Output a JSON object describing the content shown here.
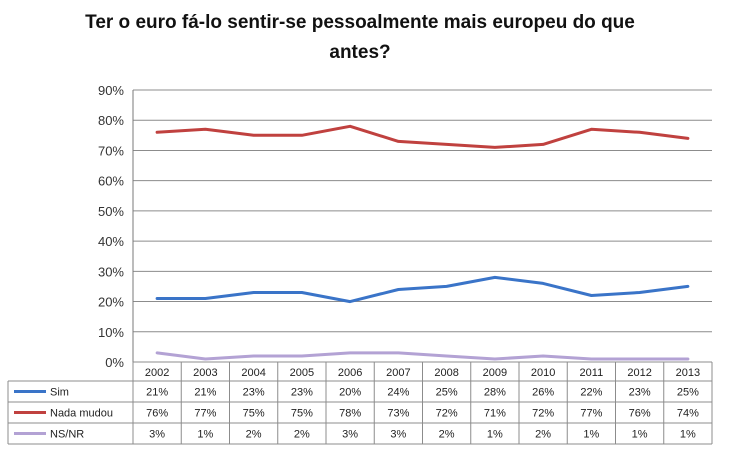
{
  "chart_data": {
    "type": "line",
    "title_line1": "Ter o euro fá-lo sentir-se pessoalmente mais europeu do que",
    "title_line2": "antes?",
    "categories": [
      "2002",
      "2003",
      "2004",
      "2005",
      "2006",
      "2007",
      "2008",
      "2009",
      "2010",
      "2011",
      "2012",
      "2013"
    ],
    "yticks": [
      "0%",
      "10%",
      "20%",
      "30%",
      "40%",
      "50%",
      "60%",
      "70%",
      "80%",
      "90%"
    ],
    "ylim": [
      0,
      90
    ],
    "grid": true,
    "series": [
      {
        "name": "Sim",
        "color": "#3a74c8",
        "values": [
          21,
          21,
          23,
          23,
          20,
          24,
          25,
          28,
          26,
          22,
          23,
          25
        ],
        "labels": [
          "21%",
          "21%",
          "23%",
          "23%",
          "20%",
          "24%",
          "25%",
          "28%",
          "26%",
          "22%",
          "23%",
          "25%"
        ]
      },
      {
        "name": "Nada mudou",
        "color": "#c0413f",
        "values": [
          76,
          77,
          75,
          75,
          78,
          73,
          72,
          71,
          72,
          77,
          76,
          74
        ],
        "labels": [
          "76%",
          "77%",
          "75%",
          "75%",
          "78%",
          "73%",
          "72%",
          "71%",
          "72%",
          "77%",
          "76%",
          "74%"
        ]
      },
      {
        "name": "NS/NR",
        "color": "#b3a2d4",
        "values": [
          3,
          1,
          2,
          2,
          3,
          3,
          2,
          1,
          2,
          1,
          1,
          1
        ],
        "labels": [
          "3%",
          "1%",
          "2%",
          "2%",
          "3%",
          "3%",
          "2%",
          "1%",
          "2%",
          "1%",
          "1%",
          "1%"
        ]
      }
    ]
  }
}
